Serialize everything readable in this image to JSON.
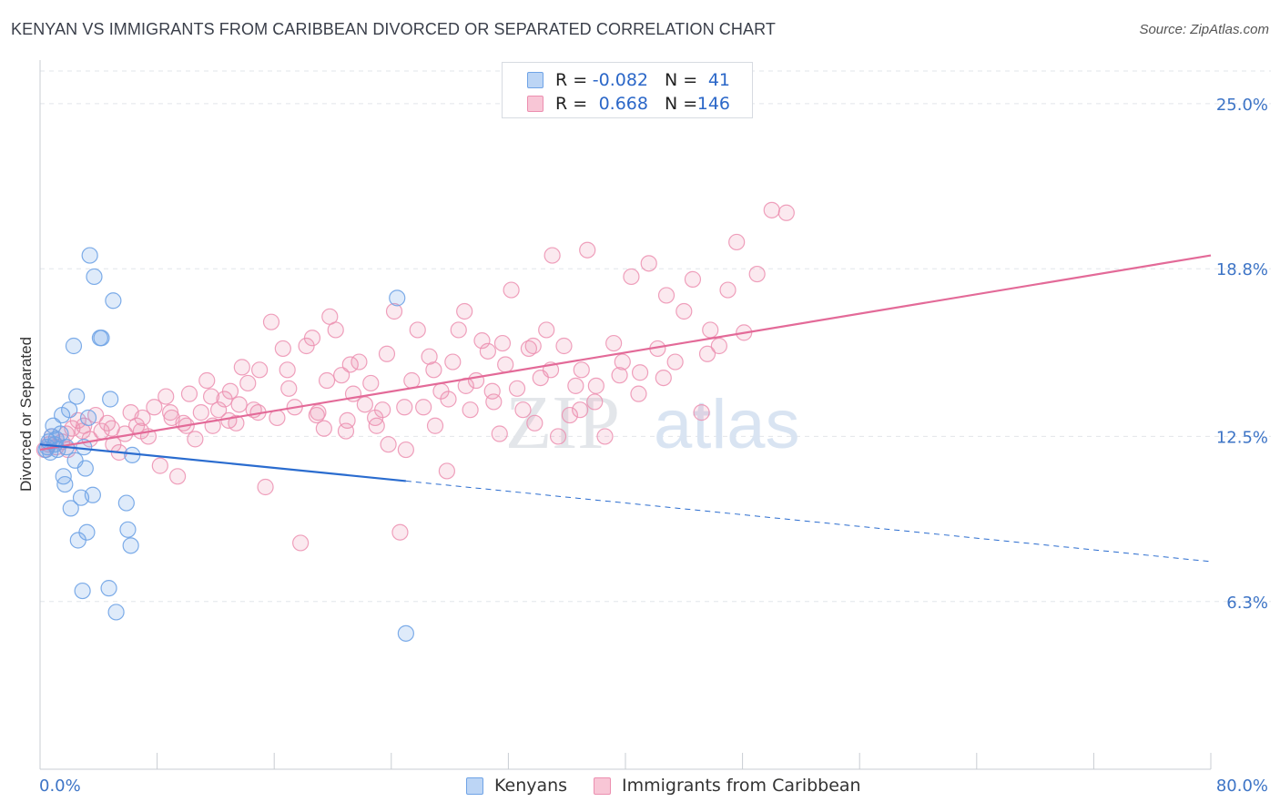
{
  "title": "KENYAN VS IMMIGRANTS FROM CARIBBEAN DIVORCED OR SEPARATED CORRELATION CHART",
  "source": "Source: ZipAtlas.com",
  "watermark": {
    "zip": "ZIP",
    "atlas": "atlas"
  },
  "legend": {
    "r_label": "R =",
    "n_label": "N =",
    "rows": [
      {
        "r": "-0.082",
        "n": "41",
        "color": "#6fa3e6",
        "fill": "#bcd5f5"
      },
      {
        "r": "0.668",
        "n": "146",
        "color": "#ec8fb0",
        "fill": "#f8c6d6"
      }
    ]
  },
  "bottom_legend": [
    "Kenyans",
    "Immigrants from Caribbean"
  ],
  "colors": {
    "blue": "#6fa3e6",
    "blue_line": "#2a6ccf",
    "pink": "#ec8fb0",
    "pink_line": "#e36a98",
    "tick_label": "#3d74c6"
  },
  "chart_data": {
    "type": "scatter",
    "title": "KENYAN VS IMMIGRANTS FROM CARIBBEAN DIVORCED OR SEPARATED CORRELATION CHART",
    "xlabel": "",
    "ylabel": "Divorced or Separated",
    "xlim": [
      0,
      80
    ],
    "ylim": [
      0,
      26.5
    ],
    "x_tick_labels": [
      "0.0%",
      "80.0%"
    ],
    "y_ticks": [
      6.3,
      12.5,
      18.8,
      25.0
    ],
    "y_tick_labels": [
      "6.3%",
      "12.5%",
      "18.8%",
      "25.0%"
    ],
    "grid": true,
    "legend_position": "top-center",
    "series": [
      {
        "name": "Kenyans",
        "trend": {
          "x0": 0,
          "y0": 12.2,
          "x1": 80,
          "y1": 7.8,
          "solid_until_x": 25
        },
        "points": [
          [
            0.5,
            12.1
          ],
          [
            0.6,
            12.3
          ],
          [
            0.8,
            12.5
          ],
          [
            0.9,
            12.9
          ],
          [
            1.0,
            12.2
          ],
          [
            1.2,
            12.0
          ],
          [
            1.4,
            12.6
          ],
          [
            1.5,
            13.3
          ],
          [
            1.6,
            11.0
          ],
          [
            1.7,
            10.7
          ],
          [
            1.8,
            12.1
          ],
          [
            2.0,
            13.5
          ],
          [
            2.1,
            9.8
          ],
          [
            2.3,
            15.9
          ],
          [
            2.5,
            14.0
          ],
          [
            2.6,
            8.6
          ],
          [
            2.8,
            10.2
          ],
          [
            2.9,
            6.7
          ],
          [
            3.0,
            12.1
          ],
          [
            3.1,
            11.3
          ],
          [
            3.2,
            8.9
          ],
          [
            3.3,
            13.2
          ],
          [
            3.4,
            19.3
          ],
          [
            3.6,
            10.3
          ],
          [
            3.7,
            18.5
          ],
          [
            4.1,
            16.2
          ],
          [
            4.2,
            16.2
          ],
          [
            4.8,
            13.9
          ],
          [
            5.0,
            17.6
          ],
          [
            5.2,
            5.9
          ],
          [
            4.7,
            6.8
          ],
          [
            5.9,
            10.0
          ],
          [
            6.0,
            9.0
          ],
          [
            6.2,
            8.4
          ],
          [
            6.3,
            11.8
          ],
          [
            0.7,
            11.9
          ],
          [
            1.1,
            12.4
          ],
          [
            24.4,
            17.7
          ],
          [
            25.0,
            5.1
          ],
          [
            0.4,
            12.0
          ],
          [
            2.4,
            11.6
          ]
        ]
      },
      {
        "name": "Immigrants from Caribbean",
        "trend": {
          "x0": 0,
          "y0": 12.0,
          "x1": 80,
          "y1": 19.3
        },
        "points": [
          [
            0.3,
            12.0
          ],
          [
            0.6,
            12.2
          ],
          [
            0.8,
            12.5
          ],
          [
            1.1,
            12.1
          ],
          [
            1.5,
            12.3
          ],
          [
            1.8,
            12.6
          ],
          [
            2.2,
            12.8
          ],
          [
            2.6,
            13.1
          ],
          [
            3.0,
            12.9
          ],
          [
            3.4,
            12.4
          ],
          [
            3.8,
            13.3
          ],
          [
            4.2,
            12.7
          ],
          [
            4.6,
            13.0
          ],
          [
            5.0,
            12.2
          ],
          [
            5.4,
            11.9
          ],
          [
            5.8,
            12.6
          ],
          [
            6.2,
            13.4
          ],
          [
            6.6,
            12.9
          ],
          [
            7.0,
            13.2
          ],
          [
            7.4,
            12.5
          ],
          [
            7.8,
            13.6
          ],
          [
            8.2,
            11.4
          ],
          [
            8.6,
            14.0
          ],
          [
            9.0,
            13.2
          ],
          [
            9.4,
            11.0
          ],
          [
            9.8,
            13.0
          ],
          [
            10.2,
            14.1
          ],
          [
            10.6,
            12.4
          ],
          [
            11.0,
            13.4
          ],
          [
            11.4,
            14.6
          ],
          [
            11.8,
            12.9
          ],
          [
            12.2,
            13.5
          ],
          [
            12.6,
            13.9
          ],
          [
            13.0,
            14.2
          ],
          [
            13.4,
            13.0
          ],
          [
            13.8,
            15.1
          ],
          [
            14.2,
            14.5
          ],
          [
            14.6,
            13.5
          ],
          [
            15.0,
            15.0
          ],
          [
            15.4,
            10.6
          ],
          [
            15.8,
            16.8
          ],
          [
            16.2,
            13.2
          ],
          [
            16.6,
            15.8
          ],
          [
            17.0,
            14.3
          ],
          [
            17.4,
            13.6
          ],
          [
            17.8,
            8.5
          ],
          [
            18.2,
            15.9
          ],
          [
            18.6,
            16.2
          ],
          [
            19.0,
            13.4
          ],
          [
            19.4,
            12.8
          ],
          [
            19.8,
            17.0
          ],
          [
            20.2,
            16.5
          ],
          [
            20.6,
            14.8
          ],
          [
            21.0,
            13.1
          ],
          [
            21.4,
            14.1
          ],
          [
            21.8,
            15.3
          ],
          [
            22.2,
            13.7
          ],
          [
            22.6,
            14.5
          ],
          [
            23.0,
            12.9
          ],
          [
            23.4,
            13.5
          ],
          [
            23.8,
            12.2
          ],
          [
            24.2,
            17.2
          ],
          [
            24.6,
            8.9
          ],
          [
            25.0,
            12.0
          ],
          [
            25.4,
            14.6
          ],
          [
            25.8,
            16.5
          ],
          [
            26.2,
            13.6
          ],
          [
            26.6,
            15.5
          ],
          [
            27.0,
            12.9
          ],
          [
            27.4,
            14.2
          ],
          [
            27.8,
            11.2
          ],
          [
            28.2,
            15.3
          ],
          [
            28.6,
            16.5
          ],
          [
            29.0,
            17.2
          ],
          [
            29.4,
            13.5
          ],
          [
            29.8,
            14.6
          ],
          [
            30.2,
            16.1
          ],
          [
            30.6,
            15.7
          ],
          [
            31.0,
            13.8
          ],
          [
            31.4,
            12.6
          ],
          [
            31.8,
            15.2
          ],
          [
            32.2,
            18.0
          ],
          [
            32.6,
            14.3
          ],
          [
            33.0,
            13.5
          ],
          [
            33.4,
            15.8
          ],
          [
            33.8,
            13.0
          ],
          [
            34.2,
            14.7
          ],
          [
            34.6,
            16.5
          ],
          [
            35.0,
            19.3
          ],
          [
            35.4,
            12.5
          ],
          [
            35.8,
            15.9
          ],
          [
            36.2,
            13.3
          ],
          [
            36.6,
            14.4
          ],
          [
            37.0,
            15.0
          ],
          [
            37.4,
            19.5
          ],
          [
            38.0,
            14.4
          ],
          [
            38.6,
            12.5
          ],
          [
            39.2,
            16.0
          ],
          [
            39.8,
            15.3
          ],
          [
            40.4,
            18.5
          ],
          [
            41.0,
            14.9
          ],
          [
            41.6,
            19.0
          ],
          [
            42.2,
            15.8
          ],
          [
            42.8,
            17.8
          ],
          [
            43.4,
            15.3
          ],
          [
            44.0,
            17.2
          ],
          [
            44.6,
            18.4
          ],
          [
            45.2,
            13.4
          ],
          [
            45.8,
            16.5
          ],
          [
            46.4,
            15.9
          ],
          [
            47.0,
            18.0
          ],
          [
            47.6,
            19.8
          ],
          [
            49.0,
            18.6
          ],
          [
            50.0,
            21.0
          ],
          [
            51.0,
            20.9
          ],
          [
            10.0,
            12.9
          ],
          [
            11.7,
            14.0
          ],
          [
            13.6,
            13.7
          ],
          [
            16.9,
            15.0
          ],
          [
            19.6,
            14.6
          ],
          [
            21.2,
            15.2
          ],
          [
            23.7,
            15.6
          ],
          [
            26.9,
            15.0
          ],
          [
            29.1,
            14.4
          ],
          [
            31.6,
            16.0
          ],
          [
            33.7,
            15.9
          ],
          [
            36.9,
            13.5
          ],
          [
            39.6,
            14.8
          ],
          [
            42.6,
            14.7
          ],
          [
            45.6,
            15.6
          ],
          [
            48.1,
            16.4
          ],
          [
            1.9,
            12.0
          ],
          [
            2.9,
            12.7
          ],
          [
            4.9,
            12.8
          ],
          [
            6.9,
            12.7
          ],
          [
            8.9,
            13.4
          ],
          [
            12.9,
            13.1
          ],
          [
            14.9,
            13.4
          ],
          [
            18.9,
            13.3
          ],
          [
            20.9,
            12.7
          ],
          [
            22.9,
            13.2
          ],
          [
            24.9,
            13.6
          ],
          [
            27.9,
            13.9
          ],
          [
            30.9,
            14.2
          ],
          [
            34.9,
            15.0
          ],
          [
            37.9,
            13.8
          ],
          [
            40.9,
            14.1
          ]
        ]
      }
    ]
  }
}
